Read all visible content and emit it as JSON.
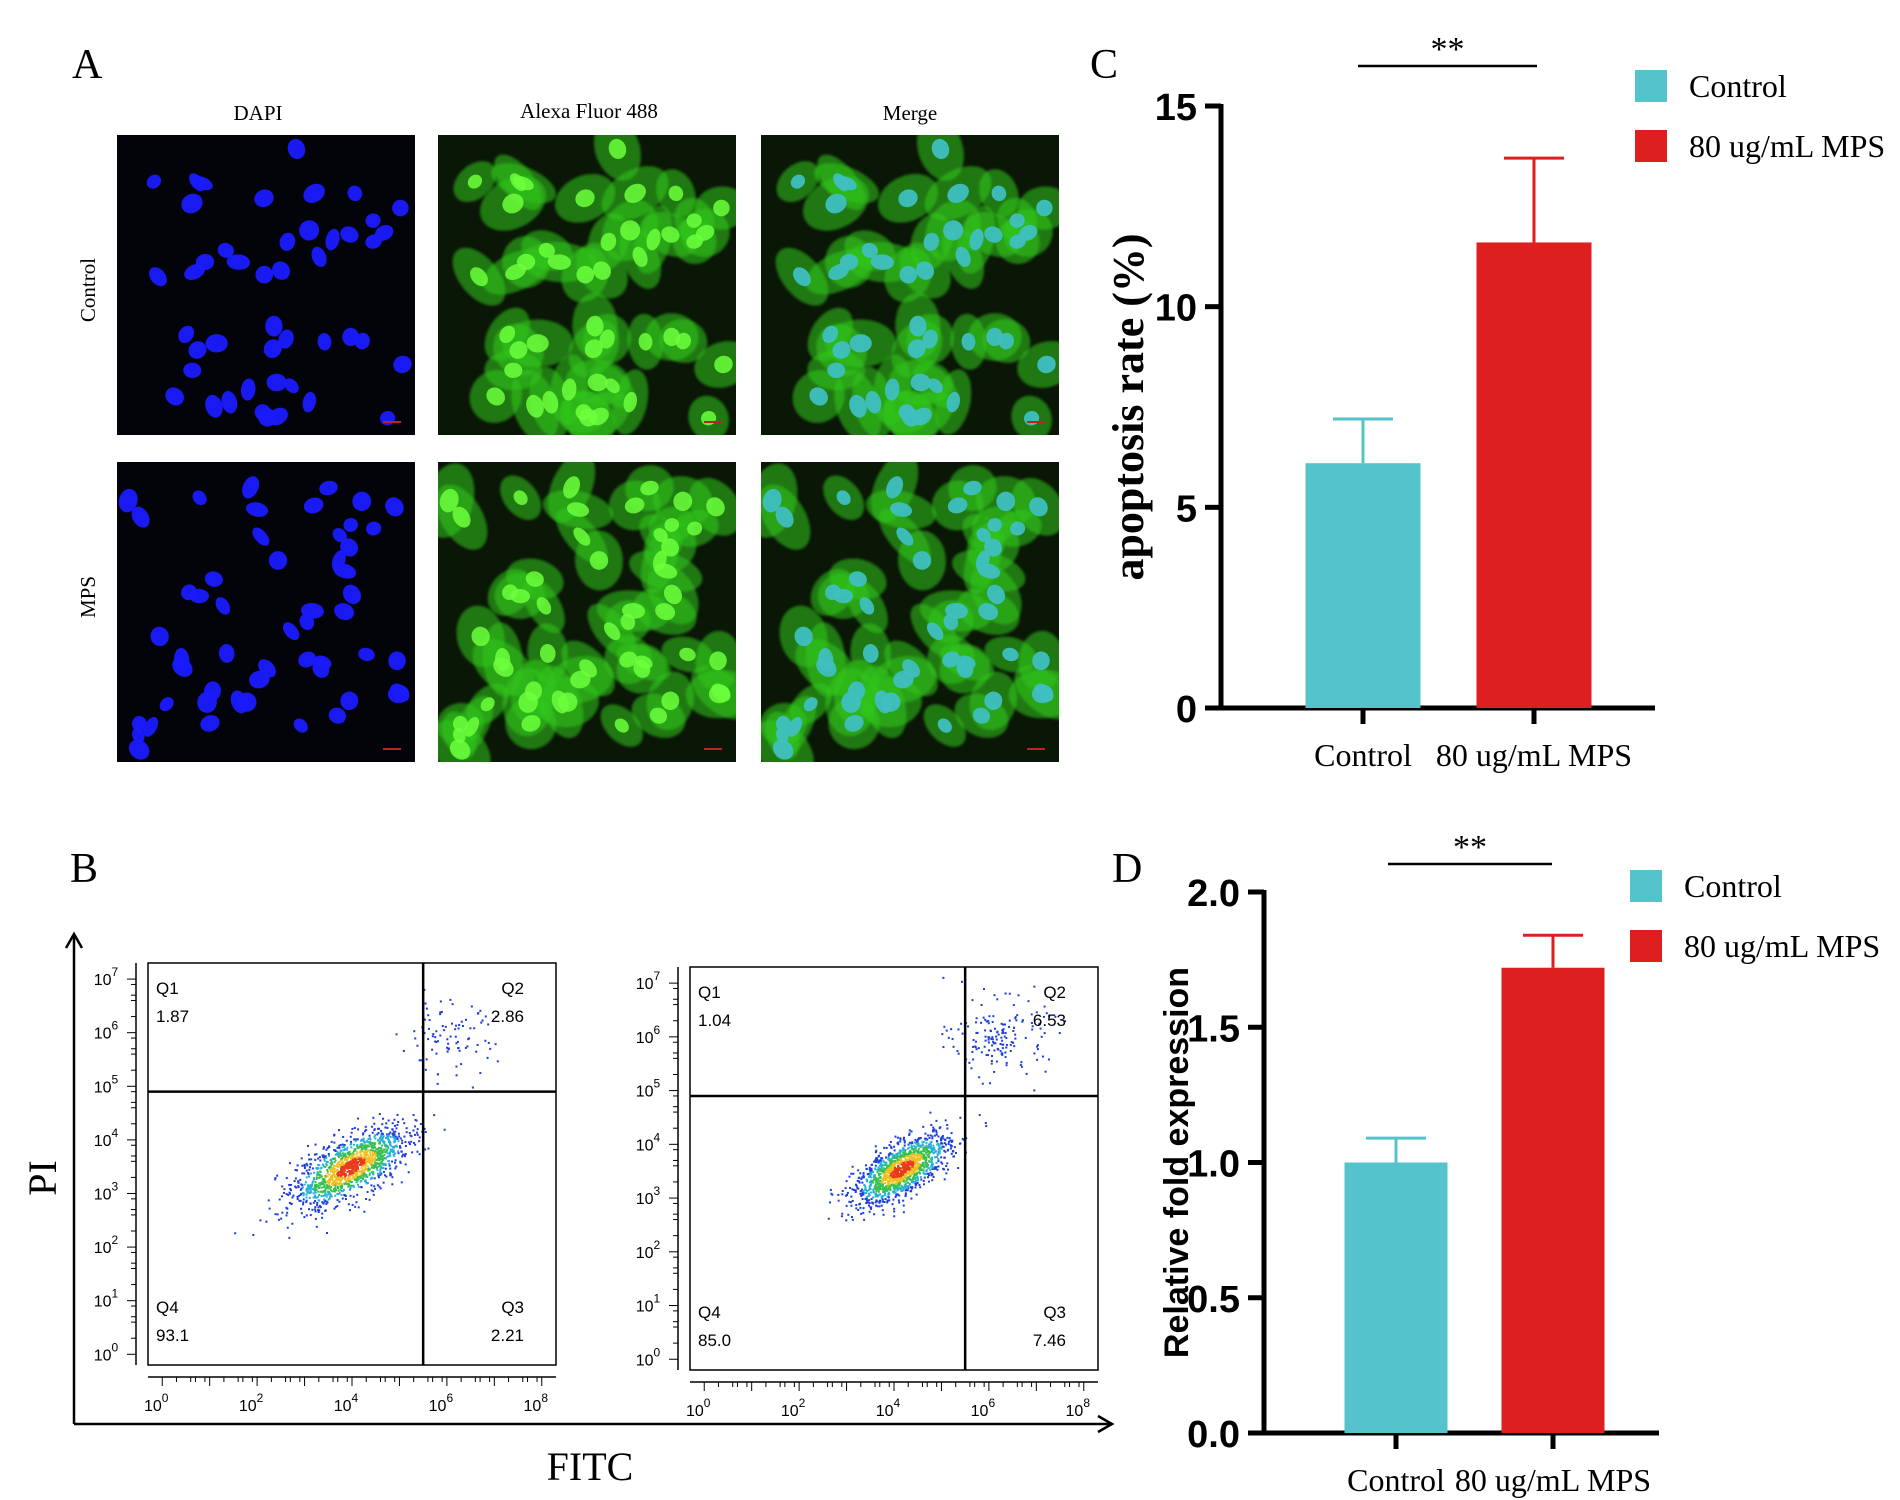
{
  "colors": {
    "control": "#55c3cb",
    "mps": "#de1f1f",
    "axis": "#000000",
    "dapi": "#1a1aff",
    "alexa": "#32c81e",
    "merge_nucleus": "#3fbfc0",
    "micro_bg": "#03030a"
  },
  "panel_a": {
    "letter": "A",
    "columns": [
      "DAPI",
      "Alexa Fluor 488",
      "Merge"
    ],
    "rows": [
      "Control",
      "MPS"
    ]
  },
  "panel_b": {
    "letter": "B",
    "y_label": "PI",
    "x_label": "FITC",
    "x_ticks": [
      {
        "base": "10",
        "exp": "0"
      },
      {
        "base": "10",
        "exp": "2"
      },
      {
        "base": "10",
        "exp": "4"
      },
      {
        "base": "10",
        "exp": "6"
      },
      {
        "base": "10",
        "exp": "8"
      }
    ],
    "y_ticks": [
      {
        "base": "10",
        "exp": "0"
      },
      {
        "base": "10",
        "exp": "1"
      },
      {
        "base": "10",
        "exp": "2"
      },
      {
        "base": "10",
        "exp": "3"
      },
      {
        "base": "10",
        "exp": "4"
      },
      {
        "base": "10",
        "exp": "5"
      },
      {
        "base": "10",
        "exp": "6"
      },
      {
        "base": "10",
        "exp": "7"
      }
    ],
    "plots": [
      {
        "gate_x_log": 5.5,
        "gate_y_log": 4.9,
        "q1": {
          "name": "Q1",
          "value": "1.87"
        },
        "q2": {
          "name": "Q2",
          "value": "2.86"
        },
        "q3": {
          "name": "Q3",
          "value": "2.21"
        },
        "q4": {
          "name": "Q4",
          "value": "93.1"
        }
      },
      {
        "gate_x_log": 5.5,
        "gate_y_log": 4.9,
        "q1": {
          "name": "Q1",
          "value": "1.04"
        },
        "q2": {
          "name": "Q2",
          "value": "6.53"
        },
        "q3": {
          "name": "Q3",
          "value": "7.46"
        },
        "q4": {
          "name": "Q4",
          "value": "85.0"
        }
      }
    ]
  },
  "chart_data": [
    {
      "panel": "C",
      "type": "bar",
      "categories": [
        "Control",
        "80 ug/mL MPS"
      ],
      "values": [
        6.1,
        11.6
      ],
      "errors": [
        1.1,
        2.1
      ],
      "ylabel": "apoptosis rate (%)",
      "ylim": [
        0,
        15
      ],
      "yticks": [
        "0",
        "5",
        "10",
        "15"
      ],
      "significance": "**",
      "legend": [
        "Control",
        "80 ug/mL MPS"
      ],
      "legend_position": "top-right"
    },
    {
      "panel": "D",
      "type": "bar",
      "categories": [
        "Control",
        "80 ug/mL MPS"
      ],
      "values": [
        1.0,
        1.72
      ],
      "errors": [
        0.09,
        0.12
      ],
      "ylabel": "Relative fold expression",
      "ylim": [
        0,
        2.0
      ],
      "yticks": [
        "0.0",
        "0.5",
        "1.0",
        "1.5",
        "2.0"
      ],
      "significance": "**",
      "legend": [
        "Control",
        "80 ug/mL MPS"
      ],
      "legend_position": "top-right"
    }
  ]
}
